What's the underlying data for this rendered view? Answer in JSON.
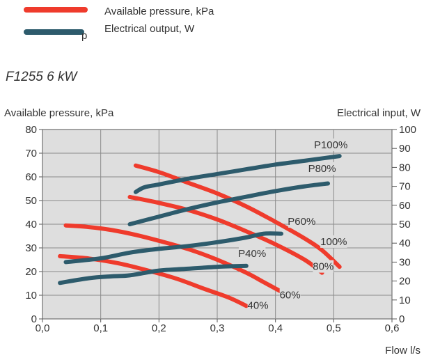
{
  "legend": [
    {
      "label": "Available pressure, kPa",
      "color": "#ef3b2c",
      "style": "thick-line"
    },
    {
      "label": "Electrical output, W",
      "color": "#2d5b6c",
      "style": "thick-line",
      "marker_text": "p"
    }
  ],
  "subtitle": "F1255 6 kW",
  "chart_data": {
    "type": "line",
    "xlabel": "Flow l/s",
    "ylabel_left": "Available pressure, kPa",
    "ylabel_right": "Electrical input, W",
    "xlim": [
      0,
      0.6
    ],
    "ylim_left": [
      0,
      80
    ],
    "ylim_right": [
      0,
      100
    ],
    "x_ticks": [
      "0,0",
      "0,1",
      "0,2",
      "0,3",
      "0,4",
      "0,5",
      "0,6"
    ],
    "y_ticks_left": [
      "0",
      "10",
      "20",
      "30",
      "40",
      "50",
      "60",
      "70",
      "80"
    ],
    "y_ticks_right": [
      "0",
      "10",
      "20",
      "30",
      "40",
      "50",
      "60",
      "70",
      "80",
      "90",
      "100"
    ],
    "grid": true,
    "background": "#dedede",
    "series": [
      {
        "name": "100%",
        "axis": "left",
        "color": "#ef3b2c",
        "x": [
          0.16,
          0.2,
          0.25,
          0.3,
          0.35,
          0.4,
          0.45,
          0.48,
          0.51
        ],
        "y": [
          64.8,
          62,
          57.5,
          53,
          47.5,
          41,
          34,
          29,
          22
        ]
      },
      {
        "name": "80%",
        "axis": "left",
        "color": "#ef3b2c",
        "x": [
          0.15,
          0.2,
          0.25,
          0.3,
          0.35,
          0.4,
          0.45,
          0.48
        ],
        "y": [
          51.5,
          49,
          46,
          42,
          37,
          31.5,
          25,
          19.5
        ]
      },
      {
        "name": "60%",
        "axis": "left",
        "color": "#ef3b2c",
        "x": [
          0.04,
          0.08,
          0.12,
          0.16,
          0.2,
          0.25,
          0.3,
          0.35,
          0.38,
          0.41
        ],
        "y": [
          39.5,
          38.8,
          37.5,
          35.5,
          33,
          29.5,
          25,
          19.5,
          15.5,
          11.5
        ]
      },
      {
        "name": "40%",
        "axis": "left",
        "color": "#ef3b2c",
        "x": [
          0.03,
          0.08,
          0.13,
          0.18,
          0.23,
          0.28,
          0.32,
          0.35
        ],
        "y": [
          26.5,
          25.5,
          23.5,
          20.5,
          17,
          12.5,
          9,
          5.5
        ]
      },
      {
        "name": "P100%",
        "axis": "right",
        "color": "#2d5b6c",
        "x": [
          0.16,
          0.175,
          0.2,
          0.25,
          0.3,
          0.35,
          0.4,
          0.45,
          0.51
        ],
        "y": [
          67,
          69.5,
          71,
          74,
          76.5,
          79,
          81.5,
          83.5,
          86
        ]
      },
      {
        "name": "P80%",
        "axis": "right",
        "color": "#2d5b6c",
        "x": [
          0.15,
          0.2,
          0.25,
          0.3,
          0.35,
          0.4,
          0.45,
          0.49
        ],
        "y": [
          50,
          54,
          58,
          61.5,
          64.5,
          67.5,
          70,
          71.5
        ]
      },
      {
        "name": "P60%",
        "axis": "right",
        "color": "#2d5b6c",
        "x": [
          0.04,
          0.1,
          0.15,
          0.2,
          0.25,
          0.3,
          0.35,
          0.38,
          0.41
        ],
        "y": [
          30,
          32,
          35,
          37,
          38.5,
          40.5,
          43,
          45,
          45
        ]
      },
      {
        "name": "P40%",
        "axis": "right",
        "color": "#2d5b6c",
        "x": [
          0.03,
          0.08,
          0.12,
          0.15,
          0.2,
          0.25,
          0.3,
          0.35
        ],
        "y": [
          19,
          21.5,
          22.5,
          23,
          25.5,
          26.5,
          27.5,
          28
        ]
      }
    ],
    "annotations": [
      {
        "text": "P100%",
        "x": 0.495,
        "y_right": 90.5
      },
      {
        "text": "P80%",
        "x": 0.48,
        "y_right": 78
      },
      {
        "text": "P60%",
        "x": 0.445,
        "y_right": 50
      },
      {
        "text": "P40%",
        "x": 0.36,
        "y_right": 33
      },
      {
        "text": "100%",
        "x": 0.5,
        "y_left": 31.5
      },
      {
        "text": "80%",
        "x": 0.482,
        "y_left": 21
      },
      {
        "text": "60%",
        "x": 0.425,
        "y_left": 9
      },
      {
        "text": "40%",
        "x": 0.37,
        "y_left": 4.5
      }
    ]
  }
}
